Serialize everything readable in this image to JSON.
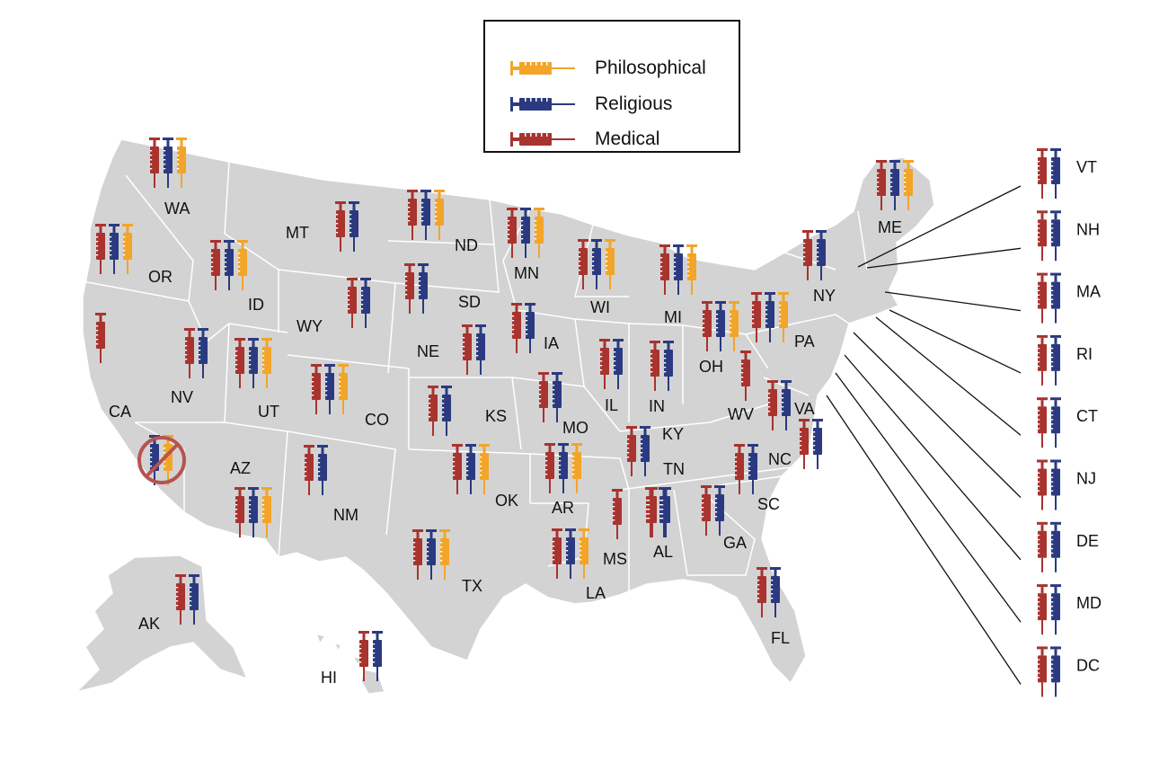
{
  "legend": {
    "items": [
      {
        "key": "philosophical",
        "label": "Philosophical",
        "color": "#f2a529"
      },
      {
        "key": "religious",
        "label": "Religious",
        "color": "#2b3a80"
      },
      {
        "key": "medical",
        "label": "Medical",
        "color": "#a8332f"
      }
    ]
  },
  "map": {
    "land_color": "#d3d3d3",
    "border_color": "#ffffff"
  },
  "states": [
    {
      "abbr": "WA",
      "exemptions": [
        "medical",
        "religious",
        "philosophical"
      ]
    },
    {
      "abbr": "OR",
      "exemptions": [
        "medical",
        "religious",
        "philosophical"
      ]
    },
    {
      "abbr": "CA",
      "exemptions": [
        "medical"
      ]
    },
    {
      "abbr": "NV",
      "exemptions": [
        "medical",
        "religious"
      ]
    },
    {
      "abbr": "ID",
      "exemptions": [
        "medical",
        "religious",
        "philosophical"
      ]
    },
    {
      "abbr": "MT",
      "exemptions": [
        "medical",
        "religious"
      ]
    },
    {
      "abbr": "WY",
      "exemptions": [
        "medical",
        "religious"
      ]
    },
    {
      "abbr": "UT",
      "exemptions": [
        "medical",
        "religious",
        "philosophical"
      ]
    },
    {
      "abbr": "AZ",
      "exemptions": [
        "medical",
        "religious",
        "philosophical"
      ]
    },
    {
      "abbr": "CO",
      "exemptions": [
        "medical",
        "religious",
        "philosophical"
      ]
    },
    {
      "abbr": "NM",
      "exemptions": [
        "medical",
        "religious"
      ]
    },
    {
      "abbr": "ND",
      "exemptions": [
        "medical",
        "religious",
        "philosophical"
      ]
    },
    {
      "abbr": "SD",
      "exemptions": [
        "medical",
        "religious"
      ]
    },
    {
      "abbr": "NE",
      "exemptions": [
        "medical",
        "religious"
      ]
    },
    {
      "abbr": "KS",
      "exemptions": [
        "medical",
        "religious"
      ]
    },
    {
      "abbr": "OK",
      "exemptions": [
        "medical",
        "religious",
        "philosophical"
      ]
    },
    {
      "abbr": "TX",
      "exemptions": [
        "medical",
        "religious",
        "philosophical"
      ]
    },
    {
      "abbr": "MN",
      "exemptions": [
        "medical",
        "religious",
        "philosophical"
      ]
    },
    {
      "abbr": "IA",
      "exemptions": [
        "medical",
        "religious"
      ]
    },
    {
      "abbr": "MO",
      "exemptions": [
        "medical",
        "religious"
      ]
    },
    {
      "abbr": "AR",
      "exemptions": [
        "medical",
        "religious",
        "philosophical"
      ]
    },
    {
      "abbr": "LA",
      "exemptions": [
        "medical",
        "religious",
        "philosophical"
      ]
    },
    {
      "abbr": "WI",
      "exemptions": [
        "medical",
        "religious",
        "philosophical"
      ]
    },
    {
      "abbr": "IL",
      "exemptions": [
        "medical",
        "religious"
      ]
    },
    {
      "abbr": "MI",
      "exemptions": [
        "medical",
        "religious",
        "philosophical"
      ]
    },
    {
      "abbr": "IN",
      "exemptions": [
        "medical",
        "religious"
      ]
    },
    {
      "abbr": "OH",
      "exemptions": [
        "medical",
        "religious",
        "philosophical"
      ]
    },
    {
      "abbr": "KY",
      "exemptions": [
        "medical",
        "religious"
      ]
    },
    {
      "abbr": "TN",
      "exemptions": [
        "medical",
        "religious"
      ]
    },
    {
      "abbr": "MS",
      "exemptions": [
        "medical"
      ]
    },
    {
      "abbr": "AL",
      "exemptions": [
        "medical",
        "religious"
      ]
    },
    {
      "abbr": "GA",
      "exemptions": [
        "medical",
        "religious"
      ]
    },
    {
      "abbr": "FL",
      "exemptions": [
        "medical",
        "religious"
      ]
    },
    {
      "abbr": "SC",
      "exemptions": [
        "medical",
        "religious"
      ]
    },
    {
      "abbr": "NC",
      "exemptions": [
        "medical",
        "religious"
      ]
    },
    {
      "abbr": "VA",
      "exemptions": [
        "medical",
        "religious"
      ]
    },
    {
      "abbr": "WV",
      "exemptions": [
        "medical"
      ]
    },
    {
      "abbr": "PA",
      "exemptions": [
        "medical",
        "religious",
        "philosophical"
      ]
    },
    {
      "abbr": "NY",
      "exemptions": [
        "medical",
        "religious"
      ]
    },
    {
      "abbr": "ME",
      "exemptions": [
        "medical",
        "religious",
        "philosophical"
      ]
    },
    {
      "abbr": "AK",
      "exemptions": [
        "medical",
        "religious"
      ]
    },
    {
      "abbr": "HI",
      "exemptions": [
        "medical",
        "religious"
      ]
    }
  ],
  "california_prohibited": {
    "exemptions": [
      "religious",
      "philosophical"
    ],
    "symbol": "no-sign"
  },
  "northeast_callouts": [
    {
      "abbr": "VT",
      "exemptions": [
        "medical",
        "religious"
      ]
    },
    {
      "abbr": "NH",
      "exemptions": [
        "medical",
        "religious"
      ]
    },
    {
      "abbr": "MA",
      "exemptions": [
        "medical",
        "religious"
      ]
    },
    {
      "abbr": "RI",
      "exemptions": [
        "medical",
        "religious"
      ]
    },
    {
      "abbr": "CT",
      "exemptions": [
        "medical",
        "religious"
      ]
    },
    {
      "abbr": "NJ",
      "exemptions": [
        "medical",
        "religious"
      ]
    },
    {
      "abbr": "DE",
      "exemptions": [
        "medical",
        "religious"
      ]
    },
    {
      "abbr": "MD",
      "exemptions": [
        "medical",
        "religious"
      ]
    },
    {
      "abbr": "DC",
      "exemptions": [
        "medical",
        "religious"
      ]
    }
  ]
}
